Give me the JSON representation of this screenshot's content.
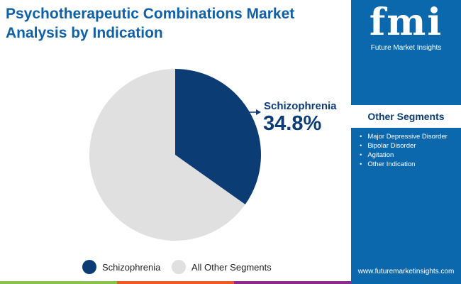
{
  "title": "Psychotherapeutic Combinations Market Analysis by Indication",
  "logo": {
    "mark": "fmi",
    "text": "Future Market Insights"
  },
  "sidebar": {
    "heading": "Other Segments",
    "items": [
      "Major Depressive Disorder",
      "Bipolar Disorder",
      "Agitation",
      "Other Indication"
    ],
    "url": "www.futuremarketinsights.com"
  },
  "chart_data": {
    "type": "pie",
    "categories": [
      "Schizophrenia",
      "All Other Segments"
    ],
    "values": [
      34.8,
      65.2
    ],
    "colors": [
      "#0c3c74",
      "#e0e0e0"
    ],
    "annotation": {
      "label": "Schizophrenia",
      "value": "34.8%"
    },
    "legend": "bottom"
  },
  "colors": {
    "brand": "#0c68ad",
    "bars": [
      "#8bc34a",
      "#f05a22",
      "#8b2c8c"
    ]
  }
}
